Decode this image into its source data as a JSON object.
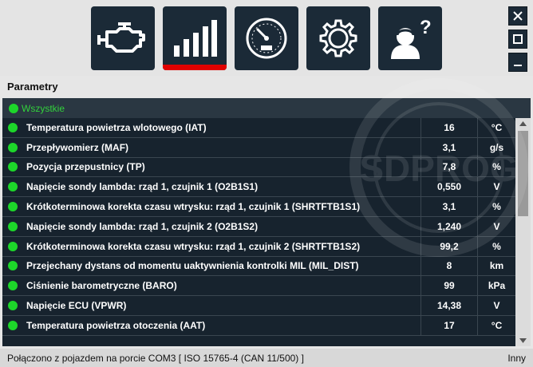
{
  "nav": {
    "buttons": [
      {
        "icon": "engine-check-icon"
      },
      {
        "icon": "signal-bars-icon",
        "active": true
      },
      {
        "icon": "speedometer-icon"
      },
      {
        "icon": "gear-settings-icon"
      },
      {
        "icon": "help-user-icon"
      }
    ],
    "active_color": "#e00000"
  },
  "window_controls": [
    "close",
    "maximize",
    "minimize"
  ],
  "panel_title": "Parametry",
  "group": {
    "label": "Wszystkie",
    "status_color": "#1dd62a"
  },
  "parameters": [
    {
      "name": "Temperatura powietrza wlotowego (IAT)",
      "value": "16",
      "unit": "°C"
    },
    {
      "name": "Przepływomierz (MAF)",
      "value": "3,1",
      "unit": "g/s"
    },
    {
      "name": "Pozycja przepustnicy (TP)",
      "value": "7,8",
      "unit": "%"
    },
    {
      "name": "Napięcie sondy lambda: rząd 1, czujnik 1 (O2B1S1)",
      "value": "0,550",
      "unit": "V"
    },
    {
      "name": "Krótkoterminowa korekta czasu wtrysku: rząd 1, czujnik 1 (SHRTFTB1S1)",
      "value": "3,1",
      "unit": "%"
    },
    {
      "name": "Napięcie sondy lambda: rząd 1, czujnik 2 (O2B1S2)",
      "value": "1,240",
      "unit": "V"
    },
    {
      "name": "Krótkoterminowa korekta czasu wtrysku: rząd 1, czujnik 2 (SHRTFTB1S2)",
      "value": "99,2",
      "unit": "%"
    },
    {
      "name": "Przejechany dystans od momentu uaktywnienia kontrolki MIL (MIL_DIST)",
      "value": "8",
      "unit": "km"
    },
    {
      "name": "Ciśnienie barometryczne (BARO)",
      "value": "99",
      "unit": "kPa"
    },
    {
      "name": "Napięcie ECU (VPWR)",
      "value": "14,38",
      "unit": "V"
    },
    {
      "name": "Temperatura powietrza otoczenia (AAT)",
      "value": "17",
      "unit": "°C"
    }
  ],
  "watermark": "SDPROG",
  "status": {
    "connection": "Połączono z pojazdem na porcie COM3  [ ISO 15765-4 (CAN 11/500) ]",
    "right": "Inny"
  }
}
